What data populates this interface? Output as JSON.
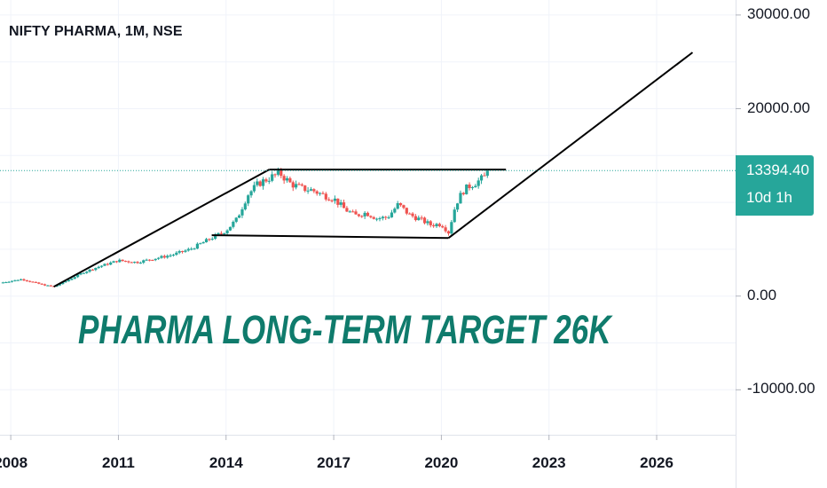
{
  "header": {
    "title": "NIFTY PHARMA, 1M, NSE"
  },
  "annotation": {
    "text": "PHARMA LONG-TERM TARGET 26K"
  },
  "price_label": {
    "value": "13394.40",
    "countdown": "10d 1h",
    "color": "#26a69a"
  },
  "colors": {
    "up": "#26a69a",
    "down": "#ef5350",
    "trendline": "#000000",
    "text_annotation": "#0f7b6c",
    "grid": "#f0f3fa"
  },
  "chart_data": {
    "type": "candlestick",
    "title": "NIFTY PHARMA, 1M, NSE",
    "y_ticks": [
      {
        "value": 30000,
        "label": "30000.00"
      },
      {
        "value": 20000,
        "label": "20000.00"
      },
      {
        "value": 0,
        "label": "0.00"
      },
      {
        "value": -10000,
        "label": "-10000.00"
      }
    ],
    "x_ticks": [
      {
        "value": 2008,
        "label": "2008"
      },
      {
        "value": 2011,
        "label": "2011"
      },
      {
        "value": 2014,
        "label": "2014"
      },
      {
        "value": 2017,
        "label": "2017"
      },
      {
        "value": 2020,
        "label": "2020"
      },
      {
        "value": 2023,
        "label": "2023"
      },
      {
        "value": 2026,
        "label": "2026"
      }
    ],
    "ylim": [
      -14800,
      31600
    ],
    "xlim": [
      2007.7,
      2028.2
    ],
    "last_price": 13394.4,
    "close_series": {
      "x": [
        2007.7,
        2008.0,
        2008.3,
        2008.6,
        2008.9,
        2009.2,
        2009.6,
        2010.0,
        2010.5,
        2011.0,
        2011.5,
        2012.0,
        2012.5,
        2013.0,
        2013.5,
        2014.0,
        2014.3,
        2014.6,
        2014.9,
        2015.2,
        2015.5,
        2015.8,
        2016.1,
        2016.4,
        2016.7,
        2017.0,
        2017.3,
        2017.6,
        2017.9,
        2018.2,
        2018.5,
        2018.8,
        2019.1,
        2019.4,
        2019.7,
        2020.0,
        2020.2,
        2020.4,
        2020.6,
        2020.8,
        2021.0,
        2021.2,
        2021.35
      ],
      "y": [
        1400,
        1600,
        1800,
        1500,
        1200,
        1000,
        1700,
        2500,
        3200,
        3800,
        3600,
        4000,
        4400,
        5000,
        6000,
        7000,
        8200,
        10800,
        12000,
        12600,
        13100,
        12000,
        11500,
        11300,
        10800,
        10400,
        9300,
        8600,
        8900,
        8300,
        8400,
        9800,
        8700,
        8200,
        7600,
        7700,
        6800,
        9800,
        11200,
        11800,
        12200,
        12700,
        13394.4
      ]
    },
    "trendlines": [
      {
        "name": "lower-channel",
        "points": [
          [
            2009.2,
            1000
          ],
          [
            2015.2,
            13500
          ]
        ]
      },
      {
        "name": "range-top",
        "points": [
          [
            2015.2,
            13500
          ],
          [
            2021.8,
            13500
          ]
        ]
      },
      {
        "name": "range-bottom",
        "points": [
          [
            2013.6,
            6500
          ],
          [
            2020.2,
            6200
          ]
        ]
      },
      {
        "name": "target-projection",
        "points": [
          [
            2020.2,
            6200
          ],
          [
            2027.0,
            26000
          ]
        ]
      }
    ]
  }
}
